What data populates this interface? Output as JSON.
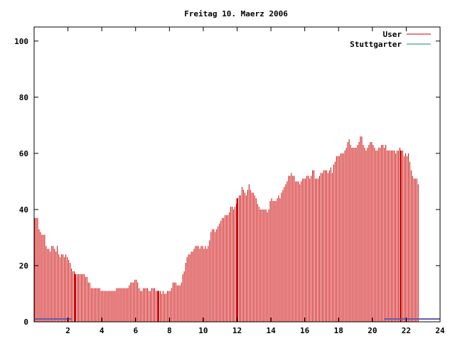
{
  "chart_data": {
    "type": "bar",
    "title": "Freitag 10. Maerz 2006",
    "xlabel": "",
    "ylabel": "",
    "xlim": [
      0,
      24
    ],
    "ylim": [
      0,
      105
    ],
    "grid": false,
    "legend_position": "top-right",
    "x_ticks": [
      2,
      4,
      6,
      8,
      10,
      12,
      14,
      16,
      18,
      20,
      22,
      24
    ],
    "y_ticks": [
      0,
      20,
      40,
      60,
      80,
      100
    ],
    "series": [
      {
        "name": "User",
        "color": "#cc0000",
        "step_minutes": 5,
        "values": [
          37,
          37,
          37,
          33,
          32,
          31,
          31,
          31,
          27,
          26,
          26,
          25,
          27,
          27,
          26,
          25,
          27,
          24,
          23,
          24,
          24,
          23,
          24,
          23,
          22,
          21,
          19,
          18,
          18,
          17,
          17,
          17,
          17,
          17,
          17,
          17,
          16,
          16,
          14,
          14,
          12,
          12,
          12,
          12,
          12,
          12,
          12,
          11,
          11,
          11,
          11,
          11,
          11,
          11,
          11,
          11,
          11,
          11,
          12,
          12,
          12,
          12,
          12,
          12,
          12,
          12,
          12,
          13,
          14,
          14,
          14,
          15,
          15,
          14,
          12,
          11,
          11,
          12,
          12,
          12,
          12,
          11,
          11,
          12,
          12,
          12,
          11,
          11,
          11,
          11,
          10,
          11,
          10,
          10,
          11,
          11,
          11,
          12,
          14,
          14,
          14,
          13,
          13,
          13,
          14,
          17,
          18,
          21,
          23,
          24,
          24,
          25,
          25,
          26,
          27,
          27,
          27,
          26,
          27,
          27,
          26,
          27,
          26,
          27,
          29,
          32,
          33,
          33,
          32,
          33,
          34,
          35,
          36,
          37,
          37,
          38,
          38,
          38,
          39,
          41,
          41,
          40,
          41,
          42,
          44,
          45,
          45,
          48,
          47,
          46,
          45,
          47,
          49,
          47,
          46,
          46,
          45,
          44,
          42,
          41,
          40,
          40,
          40,
          40,
          40,
          39,
          40,
          43,
          44,
          43,
          43,
          43,
          44,
          45,
          44,
          46,
          47,
          48,
          49,
          50,
          52,
          52,
          53,
          52,
          52,
          50,
          50,
          50,
          49,
          50,
          51,
          51,
          51,
          52,
          52,
          51,
          52,
          54,
          54,
          51,
          51,
          51,
          52,
          53,
          53,
          54,
          54,
          54,
          53,
          54,
          55,
          53,
          56,
          57,
          59,
          59,
          59,
          60,
          60,
          60,
          61,
          62,
          64,
          65,
          63,
          62,
          62,
          62,
          62,
          63,
          64,
          66,
          66,
          63,
          62,
          61,
          62,
          63,
          64,
          64,
          63,
          62,
          61,
          61,
          62,
          62,
          63,
          63,
          62,
          63,
          61,
          61,
          61,
          61,
          61,
          61,
          60,
          61,
          61,
          62,
          61,
          61,
          59,
          60,
          59,
          60,
          57,
          54,
          52,
          51,
          51,
          51,
          49
        ]
      },
      {
        "name": "Stuttgarter",
        "color": "#008b8b",
        "segments": [
          {
            "x0": 0.0,
            "x1": 2.2,
            "y": 1
          },
          {
            "x0": 20.7,
            "x1": 24.0,
            "y": 1
          }
        ]
      }
    ],
    "highlight_bars_x": [
      2.42,
      7.33,
      12.0,
      21.67
    ]
  }
}
